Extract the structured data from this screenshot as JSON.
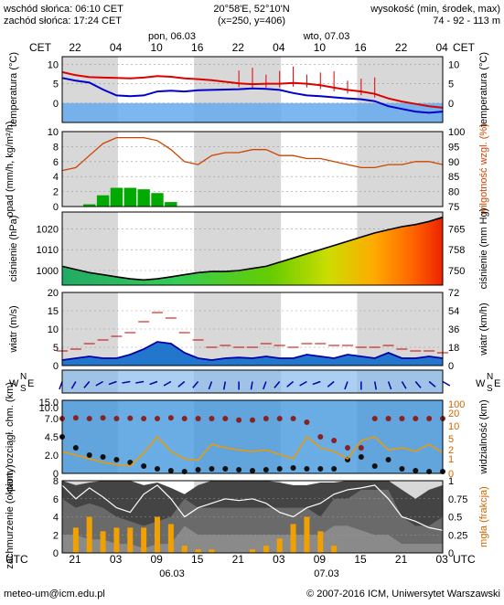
{
  "header": {
    "sunrise": "wschód słońca: 06:10 CET",
    "sunset": "zachód słońca: 17:24 CET",
    "location": "20°58'E, 52°10'N",
    "grid": "(x=250, y=406)",
    "elevation_label": "wysokość (min, środek, max)",
    "elevation_values": "74 - 92 - 113 m"
  },
  "time_axis": {
    "top_left_tz": "CET",
    "top_right_tz": "CET",
    "bottom_left_tz": "UTC",
    "bottom_right_tz": "UTC",
    "top_hours": [
      "22",
      "04",
      "10",
      "16",
      "22",
      "04",
      "10",
      "16",
      "22",
      "04"
    ],
    "bottom_hours": [
      "21",
      "03",
      "09",
      "15",
      "21",
      "03",
      "09",
      "15",
      "21",
      "03"
    ],
    "top_days": [
      "pon, 06.03",
      "wto, 07.03"
    ],
    "bottom_days": [
      "06.03",
      "07.03"
    ],
    "hour_step": 6,
    "start_hour_cet": 22
  },
  "footer": {
    "email": "meteo-um@icm.edu.pl",
    "copyright": "© 2007-2016 ICM, Uniwersytet Warszawski"
  },
  "colors": {
    "temperature_line": "#dd0000",
    "dewpoint_line": "#0000cc",
    "precip_bars": "#00aa00",
    "humidity_line": "#cc4400",
    "pressure_outline": "#000000",
    "wind_speed_line": "#0000aa",
    "gust_marks": "#cc0000",
    "visibility_line": "#ee9900",
    "fog_line": "#ffffff",
    "night_band": "#d8d8d8"
  },
  "chart_data": [
    {
      "type": "line",
      "panel": "temperature",
      "ylabel": "temperatura (°C)",
      "ylabel_right": "temperatura (°C)",
      "ylim": [
        -5,
        12
      ],
      "yticks": [
        0,
        5,
        10
      ],
      "x_hours_cet": [
        22,
        0,
        2,
        4,
        6,
        8,
        10,
        12,
        14,
        16,
        18,
        20,
        22,
        0,
        2,
        4,
        6,
        8,
        10,
        12,
        14,
        16,
        18,
        20,
        22,
        0,
        2,
        4,
        6
      ],
      "series": [
        {
          "role": "temperature",
          "values": [
            8,
            7.2,
            6.7,
            6.6,
            6.5,
            6.4,
            6.6,
            7.0,
            6.8,
            6.4,
            6.2,
            5.9,
            5.5,
            5.1,
            4.9,
            5.0,
            5.0,
            5.2,
            5.0,
            4.6,
            4.0,
            3.4,
            3.0,
            2.4,
            1.2,
            0.4,
            -0.2,
            -0.8,
            -1.2
          ]
        },
        {
          "role": "dewpoint",
          "values": [
            6.5,
            5.8,
            5.3,
            3.5,
            2.0,
            1.8,
            2.0,
            3.0,
            3.2,
            3.0,
            3.3,
            3.4,
            3.5,
            3.6,
            3.8,
            3.7,
            3.4,
            2.6,
            2.0,
            1.8,
            1.5,
            1.2,
            1.0,
            0.5,
            -0.8,
            -1.5,
            -2.2,
            -2.5,
            -2.2
          ]
        }
      ]
    },
    {
      "type": "bar",
      "panel": "precipitation",
      "ylabel": "opad (mm/h, kg/m²/h)",
      "ylabel_right": "wilgotność wzgl. (%)",
      "ylim": [
        0,
        10
      ],
      "yticks": [
        0,
        2,
        4,
        6,
        8,
        10
      ],
      "right_ylim": [
        75,
        100
      ],
      "right_yticks": [
        75,
        80,
        85,
        90,
        95,
        100
      ],
      "x_hours_cet": [
        22,
        0,
        2,
        4,
        6,
        8,
        10,
        12,
        14,
        16,
        18,
        20,
        22,
        0,
        2,
        4,
        6,
        8,
        10,
        12,
        14,
        16,
        18,
        20,
        22,
        0,
        2,
        4,
        6
      ],
      "series": [
        {
          "role": "precipitation",
          "values": [
            0,
            0,
            0.3,
            1.5,
            2.5,
            2.5,
            2.3,
            1.8,
            0.6,
            0,
            0,
            0,
            0,
            0,
            0,
            0,
            0,
            0,
            0,
            0,
            0,
            0,
            0,
            0,
            0,
            0,
            0,
            0,
            0
          ]
        },
        {
          "role": "humidity",
          "values": [
            87,
            88,
            92,
            96,
            98,
            98,
            98,
            97,
            94,
            90,
            89,
            92,
            93,
            93,
            94,
            94,
            92,
            92,
            91,
            91,
            90,
            89,
            88,
            88,
            89,
            89,
            90,
            90,
            89
          ]
        }
      ]
    },
    {
      "type": "area",
      "panel": "pressure",
      "ylabel": "ciśnienie (hPa)",
      "ylabel_right": "ciśnienie (mm Hg)",
      "ylim": [
        993,
        1028
      ],
      "yticks": [
        1000,
        1010,
        1020
      ],
      "right_yticks": [
        750,
        758,
        765
      ],
      "x_hours_cet": [
        22,
        0,
        2,
        4,
        6,
        8,
        10,
        12,
        14,
        16,
        18,
        20,
        22,
        0,
        2,
        4,
        6,
        8,
        10,
        12,
        14,
        16,
        18,
        20,
        22,
        0,
        2,
        4,
        6
      ],
      "values": [
        1002,
        1000.5,
        999,
        998,
        997,
        996,
        995.5,
        996,
        997,
        998,
        999,
        999.5,
        999.5,
        1000,
        1001,
        1002,
        1004,
        1006,
        1008,
        1010,
        1012,
        1014,
        1016,
        1018,
        1019.5,
        1021,
        1022,
        1023.5,
        1025.5
      ]
    },
    {
      "type": "line",
      "panel": "wind",
      "ylabel": "wiatr (m/s)",
      "ylabel_right": "wiatr (km/h)",
      "ylim": [
        0,
        20
      ],
      "yticks": [
        0,
        5,
        10,
        15,
        20
      ],
      "right_yticks": [
        0,
        18,
        36,
        54,
        72
      ],
      "x_hours_cet": [
        22,
        0,
        2,
        4,
        6,
        8,
        10,
        12,
        14,
        16,
        18,
        20,
        22,
        0,
        2,
        4,
        6,
        8,
        10,
        12,
        14,
        16,
        18,
        20,
        22,
        0,
        2,
        4,
        6
      ],
      "series": [
        {
          "role": "wind_speed",
          "values": [
            1.5,
            2,
            2.5,
            2,
            2,
            3,
            4.5,
            6.5,
            6,
            3.5,
            2,
            1.5,
            2,
            2.2,
            2,
            2.5,
            2,
            2,
            3,
            2.5,
            2,
            3,
            2.5,
            2,
            3.5,
            2,
            2,
            2.5,
            2
          ]
        },
        {
          "role": "gusts",
          "values": [
            4,
            4.5,
            6,
            7,
            8,
            9,
            12,
            14.5,
            13,
            9,
            7,
            5,
            5.5,
            5,
            5,
            6,
            5.5,
            5,
            6,
            6,
            5.5,
            5.5,
            5,
            5,
            5.5,
            4.5,
            4,
            4,
            3.5
          ]
        }
      ]
    },
    {
      "type": "scatter",
      "panel": "wind_direction",
      "ylabels": [
        "W",
        "N",
        "S",
        "E"
      ],
      "x_hours_cet": [
        22,
        0,
        2,
        4,
        6,
        8,
        10,
        12,
        14,
        16,
        18,
        20,
        22,
        0,
        2,
        4,
        6,
        8,
        10,
        12,
        14,
        16,
        18,
        20,
        22,
        0,
        2,
        4,
        6
      ],
      "direction_deg": [
        200,
        210,
        220,
        240,
        250,
        260,
        260,
        250,
        240,
        230,
        220,
        200,
        190,
        180,
        190,
        200,
        220,
        230,
        240,
        250,
        230,
        200,
        180,
        170,
        160,
        150,
        140,
        130,
        120
      ]
    },
    {
      "type": "scatter",
      "panel": "cloud_base_visibility",
      "ylabel": "pion. rozciągł. chm. (km)",
      "ylabel_right": "widzialność (km)",
      "yticks": [
        0,
        2.0,
        4.5,
        7.0,
        10.0,
        15.0
      ],
      "right_yticks": [
        0,
        1,
        2,
        5,
        10,
        20,
        100
      ],
      "x_hours_cet": [
        22,
        0,
        2,
        4,
        6,
        8,
        10,
        12,
        14,
        16,
        18,
        20,
        22,
        0,
        2,
        4,
        6,
        8,
        10,
        12,
        14,
        16,
        18,
        20,
        22,
        0,
        2,
        4,
        6
      ],
      "series": [
        {
          "role": "cloud_top",
          "values": [
            7,
            7.2,
            7,
            7.2,
            7,
            7.1,
            7,
            7,
            7.2,
            7,
            7,
            7,
            7,
            6.8,
            6.8,
            7,
            7,
            7,
            6.5,
            4.5,
            4,
            3,
            3,
            7,
            7,
            7,
            7,
            7,
            7
          ]
        },
        {
          "role": "cloud_base",
          "values": [
            4.5,
            3,
            2,
            1.8,
            1.5,
            1.2,
            0.8,
            0.5,
            0.3,
            0.2,
            0.4,
            0.5,
            0.5,
            0.4,
            0.3,
            0.4,
            0.5,
            0.6,
            0.5,
            0.5,
            0.5,
            1.5,
            1.8,
            0.8,
            1.5,
            0.5,
            0.3,
            0.2,
            0.2
          ]
        },
        {
          "role": "visibility",
          "values": [
            3,
            2.5,
            2,
            1.5,
            1.2,
            1.0,
            2.8,
            5,
            3,
            2,
            1.8,
            4,
            3.5,
            3.2,
            3,
            3.2,
            2.6,
            2,
            5,
            3.5,
            3,
            2,
            4.5,
            5,
            3.2,
            3.5,
            3,
            4,
            2.8
          ]
        }
      ]
    },
    {
      "type": "area",
      "panel": "cloud_cover_fog",
      "ylabel": "zachmurzenie (oktanty)",
      "ylabel_right": "mgła (frakcja)",
      "ylim": [
        0,
        8
      ],
      "yticks": [
        0,
        2,
        4,
        6,
        8
      ],
      "right_ylim": [
        0,
        1
      ],
      "right_yticks": [
        0,
        0.25,
        0.5,
        0.75,
        1
      ],
      "x_hours_cet": [
        22,
        0,
        2,
        4,
        6,
        8,
        10,
        12,
        14,
        16,
        18,
        20,
        22,
        0,
        2,
        4,
        6,
        8,
        10,
        12,
        14,
        16,
        18,
        20,
        22,
        0,
        2,
        4,
        6
      ],
      "series": [
        {
          "role": "low_cloud",
          "values": [
            8,
            7.5,
            7.8,
            8,
            8,
            8,
            7.5,
            7.8,
            7.2,
            6.5,
            7.5,
            8,
            8,
            8,
            8,
            8,
            7.8,
            7.5,
            7.5,
            7.8,
            7.8,
            8,
            8,
            8,
            8,
            7,
            6,
            7,
            7.5
          ]
        },
        {
          "role": "mid_cloud",
          "values": [
            6,
            5,
            5.5,
            5,
            4,
            3.5,
            3,
            3.5,
            4,
            6,
            5,
            5,
            5,
            5,
            5,
            5,
            5,
            5,
            5,
            4,
            6,
            6,
            7,
            7,
            7,
            4,
            3,
            3,
            4
          ]
        },
        {
          "role": "high_cloud",
          "values": [
            2,
            2,
            1.5,
            1.5,
            1,
            1,
            0.5,
            1,
            1,
            3,
            2,
            2,
            2,
            2,
            2,
            2,
            2,
            2,
            2,
            2,
            3,
            3,
            2.5,
            2,
            2,
            1,
            1,
            1,
            1
          ]
        },
        {
          "role": "total_cover",
          "values": [
            7.5,
            6,
            7.2,
            6.2,
            5,
            4.5,
            6.5,
            7.5,
            6,
            4,
            5,
            5.5,
            6,
            5.8,
            6,
            5.5,
            4.5,
            4,
            5,
            5.5,
            6.5,
            7,
            7.2,
            7.5,
            6,
            4,
            3.5,
            2.8,
            2.5
          ]
        },
        {
          "role": "fog",
          "values": [
            0,
            0.35,
            0.5,
            0.3,
            0.35,
            0.35,
            0.35,
            0.5,
            0.4,
            0.1,
            0.05,
            0.05,
            0,
            0,
            0.05,
            0.1,
            0.2,
            0.4,
            0.5,
            0.3,
            0.1,
            0,
            0,
            0,
            0,
            0,
            0,
            0,
            0
          ]
        }
      ]
    }
  ]
}
